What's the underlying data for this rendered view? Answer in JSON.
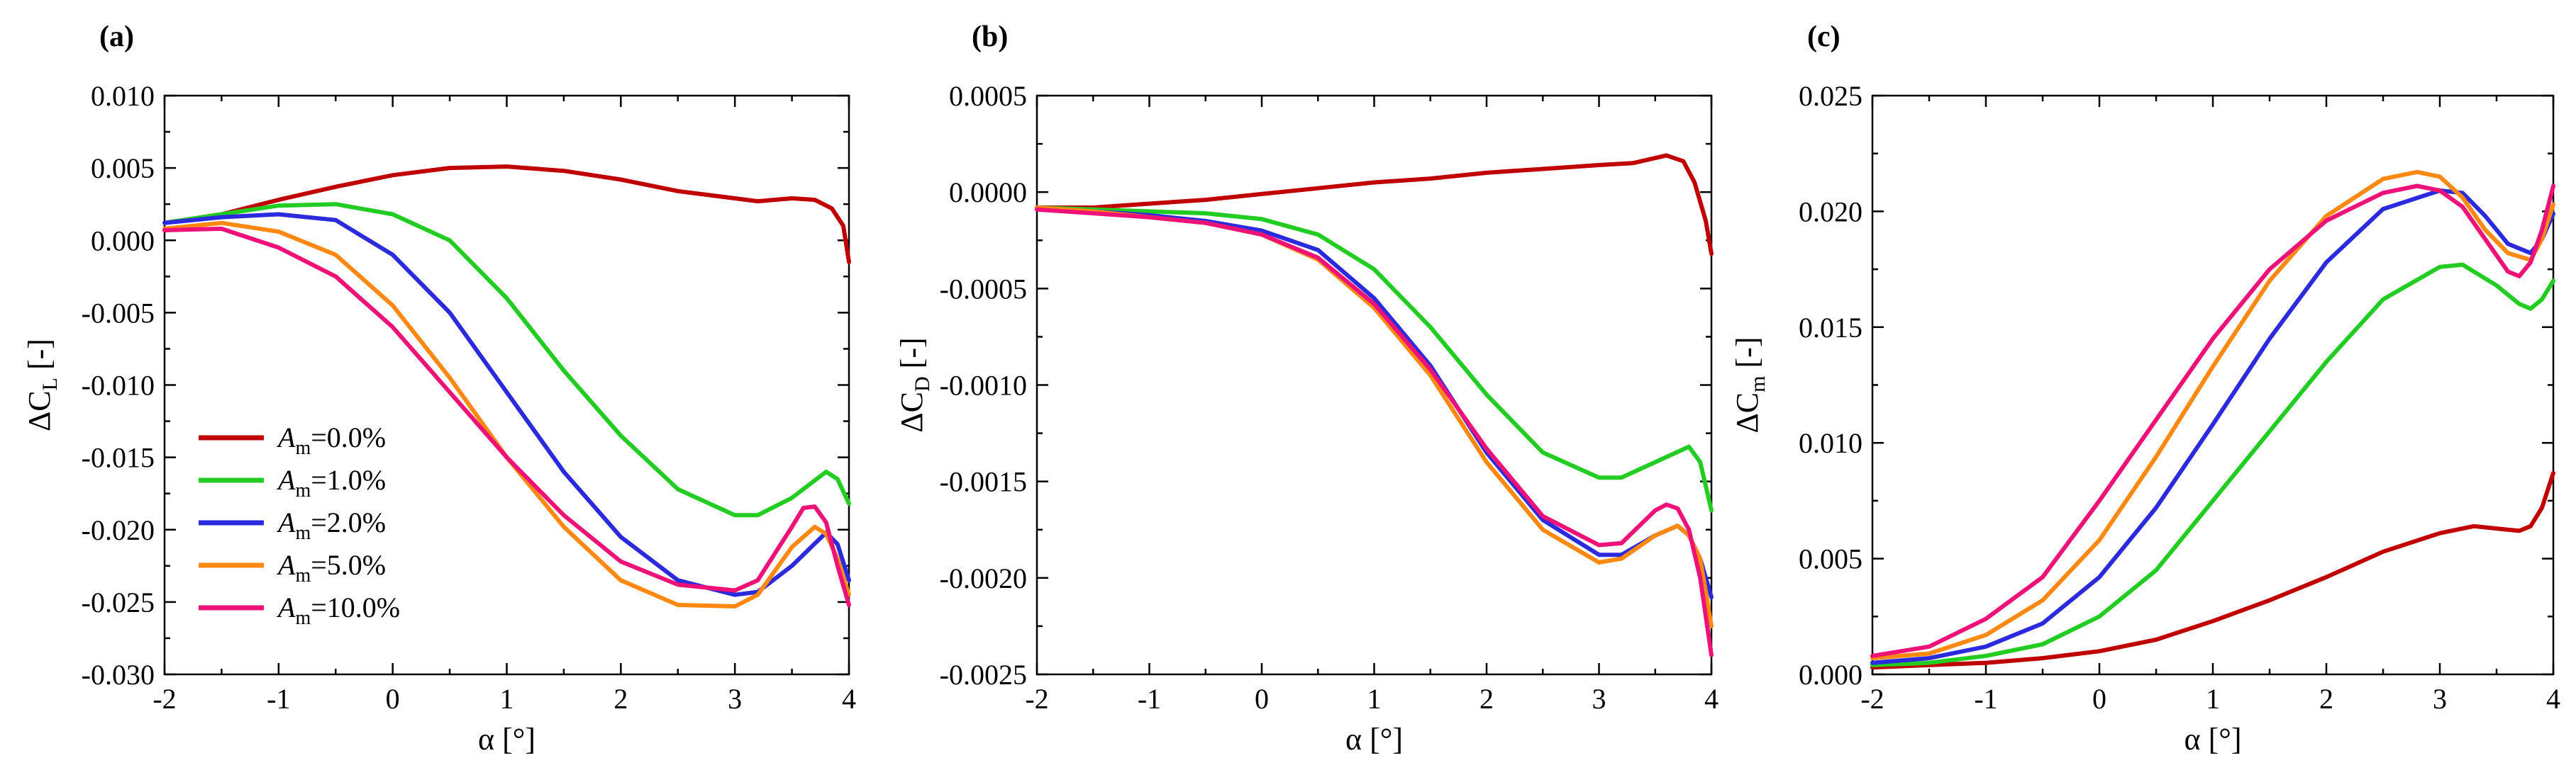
{
  "chart_data": [
    {
      "type": "line",
      "panel_label": "(a)",
      "title": "",
      "xlabel": "α [°]",
      "ylabel_main": "ΔC",
      "ylabel_sub": "L",
      "ylabel_unit": " [-]",
      "xlim": [
        -2,
        4
      ],
      "ylim": [
        -0.03,
        0.01
      ],
      "xticks": [
        -2,
        -1,
        0,
        1,
        2,
        3,
        4
      ],
      "xtick_labels": [
        "-2",
        "-1",
        "0",
        "1",
        "2",
        "3",
        "4"
      ],
      "yticks": [
        -0.03,
        -0.025,
        -0.02,
        -0.015,
        -0.01,
        -0.005,
        0,
        0.005,
        0.01
      ],
      "ytick_labels": [
        "-0.030",
        "-0.025",
        "-0.020",
        "-0.015",
        "-0.010",
        "-0.005",
        "0.000",
        "0.005",
        "0.010"
      ],
      "legend_position": "bottom-left",
      "series": [
        {
          "name": "A_m=0.0%",
          "color": "#c00000",
          "x": [
            -2,
            -1.5,
            -1,
            -0.5,
            0,
            0.5,
            1,
            1.5,
            2,
            2.5,
            3,
            3.2,
            3.5,
            3.7,
            3.85,
            3.95,
            4
          ],
          "y": [
            0.0012,
            0.0018,
            0.0028,
            0.0037,
            0.0045,
            0.005,
            0.0051,
            0.0048,
            0.0042,
            0.0034,
            0.0029,
            0.0027,
            0.0029,
            0.0028,
            0.0022,
            0.001,
            -0.0015
          ]
        },
        {
          "name": "A_m=1.0%",
          "color": "#22cc22",
          "x": [
            -2,
            -1.5,
            -1,
            -0.5,
            0,
            0.5,
            1,
            1.5,
            2,
            2.5,
            3,
            3.2,
            3.5,
            3.8,
            3.9,
            4
          ],
          "y": [
            0.0012,
            0.0018,
            0.0024,
            0.0025,
            0.0018,
            0.0,
            -0.004,
            -0.009,
            -0.0135,
            -0.0172,
            -0.019,
            -0.019,
            -0.0178,
            -0.016,
            -0.0165,
            -0.0182
          ]
        },
        {
          "name": "A_m=2.0%",
          "color": "#2b2bdd",
          "x": [
            -2,
            -1.5,
            -1,
            -0.5,
            0,
            0.5,
            1,
            1.5,
            2,
            2.5,
            3,
            3.2,
            3.5,
            3.8,
            3.9,
            4
          ],
          "y": [
            0.0012,
            0.0016,
            0.0018,
            0.0014,
            -0.001,
            -0.005,
            -0.0105,
            -0.016,
            -0.0205,
            -0.0235,
            -0.0245,
            -0.0243,
            -0.0225,
            -0.0202,
            -0.021,
            -0.0235
          ]
        },
        {
          "name": "A_m=5.0%",
          "color": "#ff8811",
          "x": [
            -2,
            -1.5,
            -1,
            -0.5,
            0,
            0.5,
            1,
            1.5,
            2,
            2.5,
            3,
            3.2,
            3.5,
            3.7,
            3.8,
            3.9,
            4
          ],
          "y": [
            0.0008,
            0.0012,
            0.0006,
            -0.001,
            -0.0045,
            -0.0095,
            -0.015,
            -0.0198,
            -0.0235,
            -0.0252,
            -0.0253,
            -0.0245,
            -0.0212,
            -0.0198,
            -0.0203,
            -0.022,
            -0.0245
          ]
        },
        {
          "name": "A_m=10.0%",
          "color": "#ee1177",
          "x": [
            -2,
            -1.5,
            -1,
            -0.5,
            0,
            0.5,
            1,
            1.5,
            2,
            2.5,
            3,
            3.2,
            3.5,
            3.6,
            3.7,
            3.8,
            3.9,
            4
          ],
          "y": [
            0.0007,
            0.0008,
            -0.0005,
            -0.0025,
            -0.006,
            -0.0105,
            -0.015,
            -0.019,
            -0.0222,
            -0.0238,
            -0.0242,
            -0.0235,
            -0.0198,
            -0.0185,
            -0.0184,
            -0.0195,
            -0.0225,
            -0.0252
          ]
        }
      ]
    },
    {
      "type": "line",
      "panel_label": "(b)",
      "title": "",
      "xlabel": "α [°]",
      "ylabel_main": "ΔC",
      "ylabel_sub": "D",
      "ylabel_unit": " [-]",
      "xlim": [
        -2,
        4
      ],
      "ylim": [
        -0.0025,
        0.0005
      ],
      "xticks": [
        -2,
        -1,
        0,
        1,
        2,
        3,
        4
      ],
      "xtick_labels": [
        "-2",
        "-1",
        "0",
        "1",
        "2",
        "3",
        "4"
      ],
      "yticks": [
        -0.0025,
        -0.002,
        -0.0015,
        -0.001,
        -0.0005,
        0,
        0.0005
      ],
      "ytick_labels": [
        "-0.0025",
        "-0.0020",
        "-0.0015",
        "-0.0010",
        "-0.0005",
        "0.0000",
        "0.0005"
      ],
      "series": [
        {
          "name": "A_m=0.0%",
          "color": "#c00000",
          "x": [
            -2,
            -1.5,
            -1,
            -0.5,
            0,
            0.5,
            1,
            1.5,
            2,
            2.5,
            3,
            3.3,
            3.6,
            3.75,
            3.85,
            3.95,
            4
          ],
          "y": [
            -8e-05,
            -8e-05,
            -6e-05,
            -4e-05,
            -1e-05,
            2e-05,
            5e-05,
            7e-05,
            0.0001,
            0.00012,
            0.00014,
            0.00015,
            0.00019,
            0.00016,
            5e-05,
            -0.00015,
            -0.00032
          ]
        },
        {
          "name": "A_m=1.0%",
          "color": "#22cc22",
          "x": [
            -2,
            -1.5,
            -1,
            -0.5,
            0,
            0.5,
            1,
            1.5,
            2,
            2.5,
            3,
            3.2,
            3.5,
            3.8,
            3.9,
            4
          ],
          "y": [
            -8e-05,
            -9e-05,
            -0.0001,
            -0.00011,
            -0.00014,
            -0.00022,
            -0.0004,
            -0.0007,
            -0.00105,
            -0.00135,
            -0.00148,
            -0.00148,
            -0.0014,
            -0.00132,
            -0.0014,
            -0.00165
          ]
        },
        {
          "name": "A_m=2.0%",
          "color": "#2b2bdd",
          "x": [
            -2,
            -1.5,
            -1,
            -0.5,
            0,
            0.5,
            1,
            1.5,
            2,
            2.5,
            3,
            3.2,
            3.5,
            3.7,
            3.8,
            3.9,
            4
          ],
          "y": [
            -8e-05,
            -0.0001,
            -0.00012,
            -0.00015,
            -0.0002,
            -0.0003,
            -0.00055,
            -0.0009,
            -0.00135,
            -0.0017,
            -0.00188,
            -0.00188,
            -0.00178,
            -0.00173,
            -0.00178,
            -0.0019,
            -0.0021
          ]
        },
        {
          "name": "A_m=5.0%",
          "color": "#ff8811",
          "x": [
            -2,
            -1.5,
            -1,
            -0.5,
            0,
            0.5,
            1,
            1.5,
            2,
            2.5,
            3,
            3.2,
            3.5,
            3.7,
            3.8,
            3.9,
            4
          ],
          "y": [
            -8e-05,
            -0.0001,
            -0.00013,
            -0.00016,
            -0.00022,
            -0.00035,
            -0.0006,
            -0.00095,
            -0.0014,
            -0.00175,
            -0.00192,
            -0.0019,
            -0.00178,
            -0.00173,
            -0.00178,
            -0.0019,
            -0.00225
          ]
        },
        {
          "name": "A_m=10.0%",
          "color": "#ee1177",
          "x": [
            -2,
            -1.5,
            -1,
            -0.5,
            0,
            0.5,
            1,
            1.5,
            2,
            2.5,
            3,
            3.2,
            3.5,
            3.6,
            3.7,
            3.8,
            3.9,
            4
          ],
          "y": [
            -9e-05,
            -0.00011,
            -0.00013,
            -0.00016,
            -0.00022,
            -0.00034,
            -0.00058,
            -0.00092,
            -0.00133,
            -0.00168,
            -0.00183,
            -0.00182,
            -0.00165,
            -0.00162,
            -0.00164,
            -0.00175,
            -0.002,
            -0.0024
          ]
        }
      ]
    },
    {
      "type": "line",
      "panel_label": "(c)",
      "title": "",
      "xlabel": "α [°]",
      "ylabel_main": "ΔC",
      "ylabel_sub": "m",
      "ylabel_unit": " [-]",
      "xlim": [
        -2,
        4
      ],
      "ylim": [
        0,
        0.025
      ],
      "xticks": [
        -2,
        -1,
        0,
        1,
        2,
        3,
        4
      ],
      "xtick_labels": [
        "-2",
        "-1",
        "0",
        "1",
        "2",
        "3",
        "4"
      ],
      "yticks": [
        0,
        0.005,
        0.01,
        0.015,
        0.02,
        0.025
      ],
      "ytick_labels": [
        "0.000",
        "0.005",
        "0.010",
        "0.015",
        "0.020",
        "0.025"
      ],
      "series": [
        {
          "name": "A_m=0.0%",
          "color": "#c00000",
          "x": [
            -2,
            -1.5,
            -1,
            -0.5,
            0,
            0.5,
            1,
            1.5,
            2,
            2.5,
            3,
            3.3,
            3.5,
            3.7,
            3.8,
            3.9,
            4
          ],
          "y": [
            0.0003,
            0.0004,
            0.0005,
            0.0007,
            0.001,
            0.0015,
            0.0023,
            0.0032,
            0.0042,
            0.0053,
            0.0061,
            0.0064,
            0.0063,
            0.0062,
            0.0064,
            0.0072,
            0.0087
          ]
        },
        {
          "name": "A_m=1.0%",
          "color": "#22cc22",
          "x": [
            -2,
            -1.5,
            -1,
            -0.5,
            0,
            0.5,
            1,
            1.5,
            2,
            2.5,
            3,
            3.2,
            3.5,
            3.7,
            3.8,
            3.9,
            4
          ],
          "y": [
            0.0004,
            0.0005,
            0.0008,
            0.0013,
            0.0025,
            0.0045,
            0.0075,
            0.0105,
            0.0135,
            0.0162,
            0.0176,
            0.0177,
            0.0168,
            0.016,
            0.0158,
            0.0162,
            0.017
          ]
        },
        {
          "name": "A_m=2.0%",
          "color": "#2b2bdd",
          "x": [
            -2,
            -1.5,
            -1,
            -0.5,
            0,
            0.5,
            1,
            1.5,
            2,
            2.5,
            3,
            3.2,
            3.4,
            3.6,
            3.8,
            3.9,
            4
          ],
          "y": [
            0.0005,
            0.0007,
            0.0012,
            0.0022,
            0.0042,
            0.0072,
            0.0108,
            0.0145,
            0.0178,
            0.0201,
            0.0209,
            0.0208,
            0.0198,
            0.0186,
            0.0182,
            0.0188,
            0.0199
          ]
        },
        {
          "name": "A_m=5.0%",
          "color": "#ff8811",
          "x": [
            -2,
            -1.5,
            -1,
            -0.5,
            0,
            0.5,
            1,
            1.5,
            2,
            2.5,
            2.8,
            3,
            3.2,
            3.4,
            3.6,
            3.8,
            3.9,
            4
          ],
          "y": [
            0.0007,
            0.0009,
            0.0017,
            0.0032,
            0.0058,
            0.0094,
            0.0133,
            0.017,
            0.0198,
            0.0214,
            0.0217,
            0.0215,
            0.0206,
            0.0192,
            0.0182,
            0.0179,
            0.0188,
            0.0203
          ]
        },
        {
          "name": "A_m=10.0%",
          "color": "#ee1177",
          "x": [
            -2,
            -1.5,
            -1,
            -0.5,
            0,
            0.5,
            1,
            1.5,
            2,
            2.5,
            2.8,
            3,
            3.2,
            3.4,
            3.6,
            3.7,
            3.8,
            3.9,
            4
          ],
          "y": [
            0.0008,
            0.0012,
            0.0024,
            0.0042,
            0.0075,
            0.011,
            0.0145,
            0.0175,
            0.0196,
            0.0208,
            0.0211,
            0.0209,
            0.0202,
            0.0188,
            0.0174,
            0.0172,
            0.0178,
            0.0192,
            0.0211
          ]
        }
      ]
    }
  ],
  "legend": {
    "entries": [
      {
        "symbol": "A",
        "sub": "m",
        "value": "=0.0%",
        "color": "#c00000"
      },
      {
        "symbol": "A",
        "sub": "m",
        "value": "=1.0%",
        "color": "#22cc22"
      },
      {
        "symbol": "A",
        "sub": "m",
        "value": "=2.0%",
        "color": "#2b2bdd"
      },
      {
        "symbol": "A",
        "sub": "m",
        "value": "=5.0%",
        "color": "#ff8811"
      },
      {
        "symbol": "A",
        "sub": "m",
        "value": "=10.0%",
        "color": "#ee1177"
      }
    ]
  }
}
